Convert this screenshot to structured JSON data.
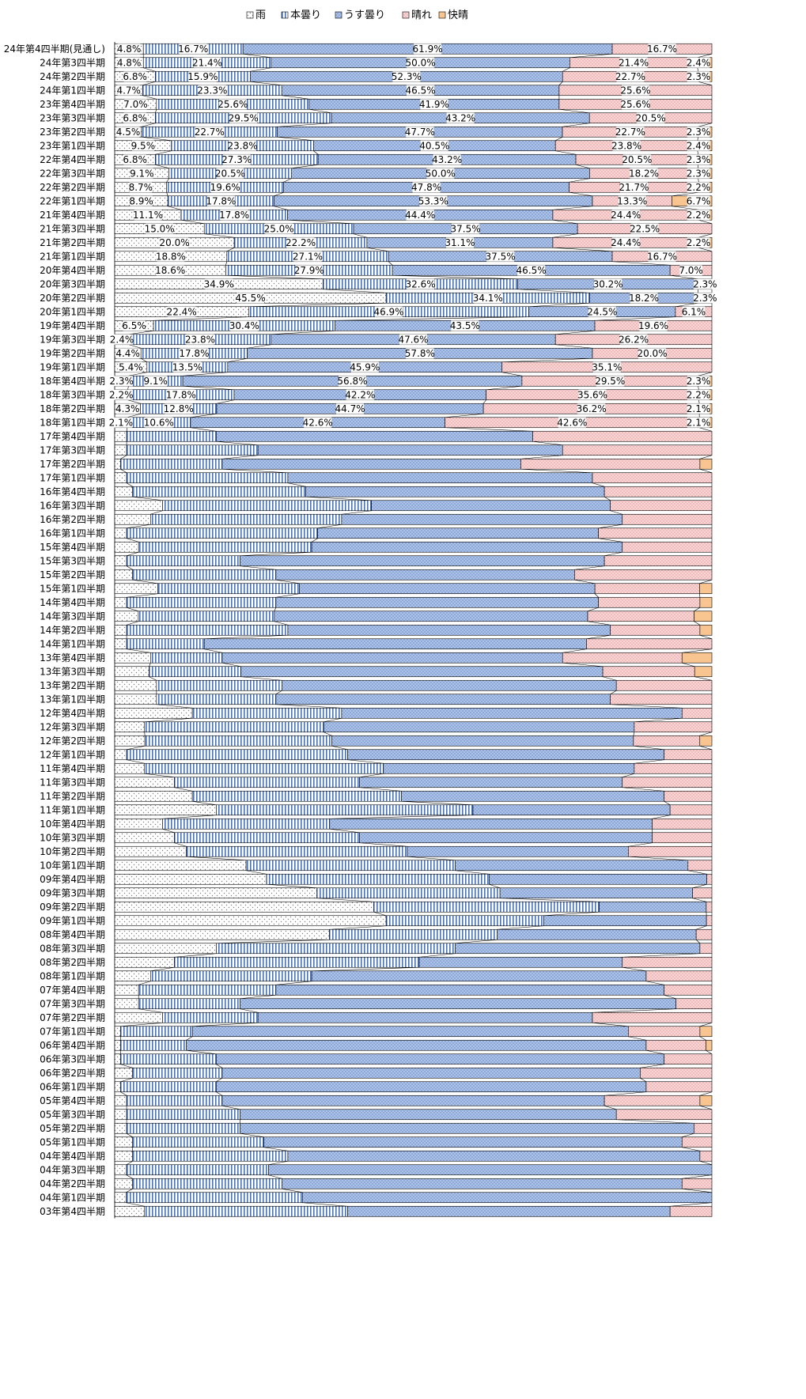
{
  "chart_data": {
    "type": "bar",
    "orientation": "horizontal",
    "stacked": "100%",
    "legend": {
      "placement": "top",
      "items": [
        {
          "name": "雨",
          "pattern": "dots",
          "color": "#ffffff"
        },
        {
          "name": "本曇り",
          "pattern": "vlines",
          "color": "#4472c4"
        },
        {
          "name": "うす曇り",
          "pattern": "dots-blue",
          "color": "#8eaadb"
        },
        {
          "name": "晴れ",
          "pattern": "pink-dots",
          "color": "#f4b6b6"
        },
        {
          "name": "快晴",
          "pattern": "solid",
          "color": "#f8c490"
        }
      ]
    },
    "categories": [
      "24年第4四半期(見通し)",
      "24年第3四半期",
      "24年第2四半期",
      "24年第1四半期",
      "23年第4四半期",
      "23年第3四半期",
      "23年第2四半期",
      "23年第1四半期",
      "22年第4四半期",
      "22年第3四半期",
      "22年第2四半期",
      "22年第1四半期",
      "21年第4四半期",
      "21年第3四半期",
      "21年第2四半期",
      "21年第1四半期",
      "20年第4四半期",
      "20年第3四半期",
      "20年第2四半期",
      "20年第1四半期",
      "19年第4四半期",
      "19年第3四半期",
      "19年第2四半期",
      "19年第1四半期",
      "18年第4四半期",
      "18年第3四半期",
      "18年第2四半期",
      "18年第1四半期",
      "17年第4四半期",
      "17年第3四半期",
      "17年第2四半期",
      "17年第1四半期",
      "16年第4四半期",
      "16年第3四半期",
      "16年第2四半期",
      "16年第1四半期",
      "15年第4四半期",
      "15年第3四半期",
      "15年第2四半期",
      "15年第1四半期",
      "14年第4四半期",
      "14年第3四半期",
      "14年第2四半期",
      "14年第1四半期",
      "13年第4四半期",
      "13年第3四半期",
      "13年第2四半期",
      "13年第1四半期",
      "12年第4四半期",
      "12年第3四半期",
      "12年第2四半期",
      "12年第1四半期",
      "11年第4四半期",
      "11年第3四半期",
      "11年第2四半期",
      "11年第1四半期",
      "10年第4四半期",
      "10年第3四半期",
      "10年第2四半期",
      "10年第1四半期",
      "09年第4四半期",
      "09年第3四半期",
      "09年第2四半期",
      "09年第1四半期",
      "08年第4四半期",
      "08年第3四半期",
      "08年第2四半期",
      "08年第1四半期",
      "07年第4四半期",
      "07年第3四半期",
      "07年第2四半期",
      "07年第1四半期",
      "06年第4四半期",
      "06年第3四半期",
      "06年第2四半期",
      "06年第1四半期",
      "05年第4四半期",
      "05年第3四半期",
      "05年第2四半期",
      "05年第1四半期",
      "04年第4四半期",
      "04年第3四半期",
      "04年第2四半期",
      "04年第1四半期",
      "03年第4四半期"
    ],
    "series": [
      {
        "name": "雨",
        "values": [
          4.8,
          4.8,
          6.8,
          4.7,
          7.0,
          6.8,
          4.5,
          9.5,
          6.8,
          9.1,
          8.7,
          8.9,
          11.1,
          15.0,
          20.0,
          18.8,
          18.6,
          34.9,
          45.5,
          22.4,
          6.5,
          2.4,
          4.4,
          5.4,
          2.3,
          2.2,
          4.3,
          2.1,
          2,
          2,
          1,
          2,
          3,
          8,
          6,
          2,
          4,
          2,
          3,
          7,
          2,
          4,
          2,
          2,
          6,
          6,
          7,
          7,
          13,
          5,
          5,
          2,
          5,
          10,
          13,
          17,
          8,
          10,
          12,
          22,
          30,
          42,
          46,
          50,
          41,
          17,
          10,
          6,
          4,
          4,
          8,
          1,
          1,
          1,
          3,
          1,
          2,
          2,
          2,
          3,
          3,
          2,
          3,
          2,
          5
        ]
      },
      {
        "name": "本曇り",
        "values": [
          16.7,
          21.4,
          15.9,
          23.3,
          25.6,
          29.5,
          22.7,
          23.8,
          27.3,
          20.5,
          19.6,
          17.8,
          17.8,
          25.0,
          22.2,
          27.1,
          27.9,
          32.6,
          34.1,
          46.9,
          30.4,
          23.8,
          17.8,
          13.5,
          9.1,
          17.8,
          12.8,
          10.6,
          15,
          22,
          17,
          27,
          29,
          35,
          32,
          32,
          29,
          19,
          24,
          23,
          25,
          23,
          27,
          13,
          12,
          16,
          21,
          20,
          25,
          30,
          31,
          37,
          40,
          31,
          35,
          43,
          28,
          31,
          37,
          35,
          44,
          38,
          40,
          29,
          32,
          40,
          41,
          27,
          23,
          17,
          16,
          12,
          11,
          16,
          15,
          16,
          16,
          19,
          19,
          22,
          26,
          24,
          25,
          31,
          34
        ]
      },
      {
        "name": "うす曇り",
        "values": [
          61.9,
          50.0,
          52.3,
          46.5,
          41.9,
          43.2,
          47.7,
          40.5,
          43.2,
          50.0,
          47.8,
          53.3,
          44.4,
          37.5,
          31.1,
          37.5,
          46.5,
          30.2,
          18.2,
          24.5,
          43.5,
          47.6,
          57.8,
          45.9,
          56.8,
          42.2,
          44.7,
          42.6,
          53,
          51,
          50,
          51,
          50,
          40,
          47,
          47,
          52,
          61,
          50,
          48,
          54,
          53,
          54,
          64,
          57,
          63,
          56,
          56,
          57,
          52,
          50,
          53,
          42,
          44,
          44,
          33,
          54,
          49,
          37,
          39,
          43,
          40,
          19,
          30,
          38,
          41,
          34,
          56,
          65,
          73,
          56,
          73,
          77,
          75,
          70,
          72,
          64,
          63,
          76,
          70,
          69,
          75,
          67,
          72,
          54
        ]
      },
      {
        "name": "晴れ",
        "values": [
          16.7,
          21.4,
          22.7,
          25.6,
          25.6,
          20.5,
          22.7,
          23.8,
          20.5,
          18.2,
          21.7,
          13.3,
          24.4,
          22.5,
          24.4,
          16.7,
          7.0,
          2.3,
          2.3,
          6.1,
          19.6,
          26.2,
          20.0,
          35.1,
          29.5,
          35.6,
          36.2,
          42.6,
          30,
          25,
          30,
          20,
          18,
          17,
          15,
          19,
          15,
          18,
          23,
          17,
          17,
          18,
          15,
          21,
          20,
          16,
          16,
          17,
          5,
          13,
          11,
          8,
          13,
          15,
          8,
          7,
          10,
          10,
          14,
          4,
          1,
          4,
          1,
          1,
          3,
          2,
          15,
          11,
          8,
          6,
          20,
          12,
          10,
          8,
          12,
          11,
          16,
          16,
          3,
          5,
          2,
          0,
          5,
          0,
          7
        ]
      },
      {
        "name": "快晴",
        "values": [
          0,
          2.4,
          2.3,
          0,
          0,
          0,
          2.3,
          2.4,
          2.3,
          2.3,
          2.2,
          6.7,
          2.2,
          0,
          2.2,
          0,
          0,
          0,
          0,
          0,
          0,
          0,
          0,
          0,
          2.3,
          2.2,
          2.1,
          2.1,
          0,
          0,
          2,
          0,
          0,
          0,
          0,
          0,
          0,
          0,
          0,
          2,
          2,
          3,
          2,
          0,
          5,
          3,
          0,
          0,
          0,
          0,
          2,
          0,
          0,
          0,
          0,
          0,
          0,
          0,
          0,
          0,
          0,
          0,
          0,
          0,
          0,
          0,
          0,
          0,
          0,
          0,
          0,
          2,
          1,
          0,
          0,
          0,
          2,
          0,
          0,
          0,
          0,
          0,
          0,
          0,
          0
        ]
      }
    ],
    "labeled_rows": 28,
    "xlim": [
      0,
      100
    ],
    "grid": false
  }
}
